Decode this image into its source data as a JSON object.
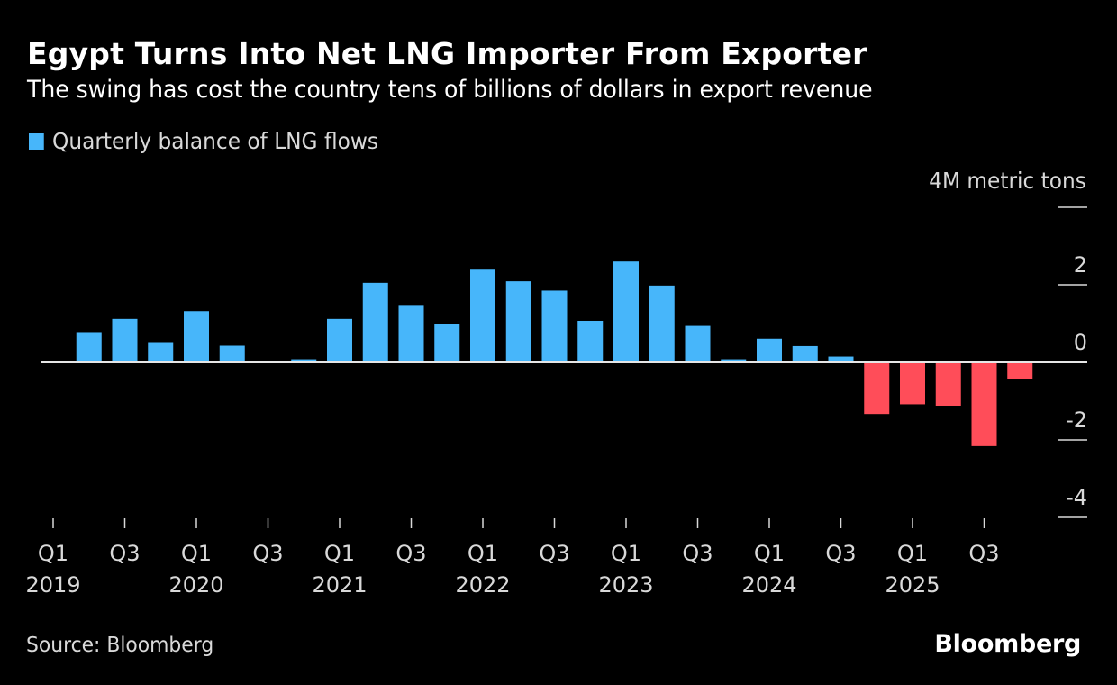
{
  "header": {
    "title": "Egypt Turns Into Net LNG Importer From Exporter",
    "subtitle": "The swing has cost the country tens of billions of dollars in export revenue"
  },
  "legend": {
    "label": "Quarterly balance of LNG flows",
    "color": "#47b6fa"
  },
  "footer": {
    "source": "Source: Bloomberg",
    "brand": "Bloomberg"
  },
  "chart_data": {
    "type": "bar",
    "title": "Egypt Turns Into Net LNG Importer From Exporter",
    "subtitle": "The swing has cost the country tens of billions of dollars in export revenue",
    "xlabel": "",
    "ylabel": "4M metric tons",
    "unit_label": "4M metric tons",
    "ylim": [
      -4,
      4
    ],
    "yticks": [
      4,
      2,
      0,
      -2,
      -4
    ],
    "ytick_labels": [
      "4M metric tons",
      "2",
      "0",
      "-2",
      "-4"
    ],
    "y_axis_position": "right",
    "grid": false,
    "legend_position": "top-left",
    "positive_color": "#47b6fa",
    "negative_color": "#ff4d59",
    "categories": [
      "Q1 2019",
      "Q2 2019",
      "Q3 2019",
      "Q4 2019",
      "Q1 2020",
      "Q2 2020",
      "Q3 2020",
      "Q4 2020",
      "Q1 2021",
      "Q2 2021",
      "Q3 2021",
      "Q4 2021",
      "Q1 2022",
      "Q2 2022",
      "Q3 2022",
      "Q4 2022",
      "Q1 2023",
      "Q2 2023",
      "Q3 2023",
      "Q4 2023",
      "Q1 2024",
      "Q2 2024",
      "Q3 2024",
      "Q4 2024",
      "Q1 2025",
      "Q2 2025",
      "Q3 2025",
      "Q4 2025"
    ],
    "x_tick_labels": [
      {
        "index": 0,
        "quarter": "Q1",
        "year": "2019"
      },
      {
        "index": 2,
        "quarter": "Q3",
        "year": ""
      },
      {
        "index": 4,
        "quarter": "Q1",
        "year": "2020"
      },
      {
        "index": 6,
        "quarter": "Q3",
        "year": ""
      },
      {
        "index": 8,
        "quarter": "Q1",
        "year": "2021"
      },
      {
        "index": 10,
        "quarter": "Q3",
        "year": ""
      },
      {
        "index": 12,
        "quarter": "Q1",
        "year": "2022"
      },
      {
        "index": 14,
        "quarter": "Q3",
        "year": ""
      },
      {
        "index": 16,
        "quarter": "Q1",
        "year": "2023"
      },
      {
        "index": 18,
        "quarter": "Q3",
        "year": ""
      },
      {
        "index": 20,
        "quarter": "Q1",
        "year": "2024"
      },
      {
        "index": 22,
        "quarter": "Q3",
        "year": ""
      },
      {
        "index": 24,
        "quarter": "Q1",
        "year": "2025"
      },
      {
        "index": 26,
        "quarter": "Q3",
        "year": ""
      }
    ],
    "series": [
      {
        "name": "Quarterly balance of LNG flows",
        "values": [
          0,
          0.78,
          1.12,
          0.5,
          1.32,
          0.43,
          0,
          0.08,
          1.12,
          2.05,
          1.48,
          0.98,
          2.39,
          2.09,
          1.85,
          1.07,
          2.6,
          1.98,
          0.94,
          0.08,
          0.61,
          0.42,
          0.15,
          -1.33,
          -1.08,
          -1.13,
          -2.16,
          -0.42
        ]
      }
    ]
  }
}
